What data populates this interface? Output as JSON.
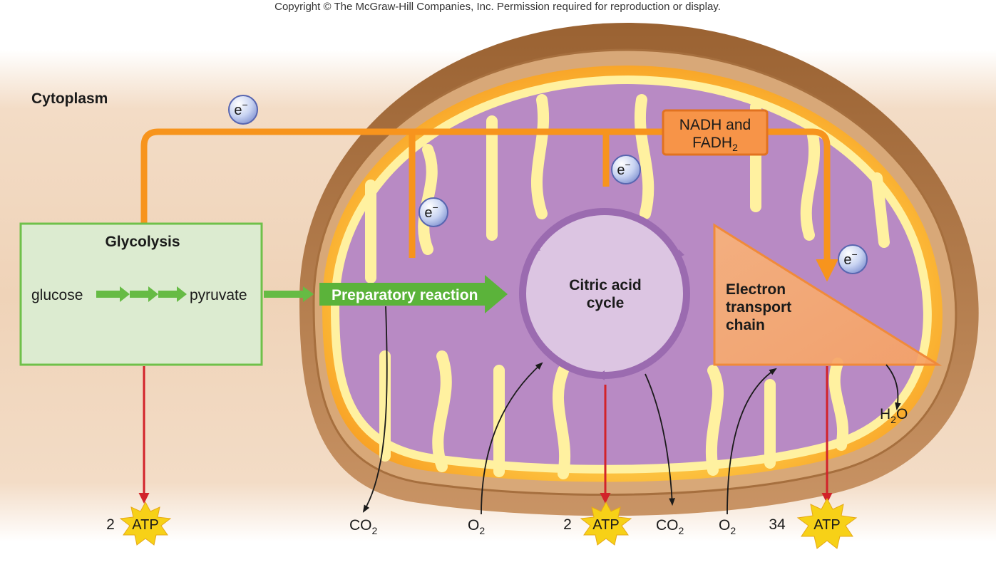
{
  "copyright": "Copyright © The McGraw-Hill Companies, Inc. Permission required for reproduction or display.",
  "regions": {
    "cytoplasm": "Cytoplasm"
  },
  "glycolysis": {
    "title": "Glycolysis",
    "input": "glucose",
    "output": "pyruvate"
  },
  "prep": {
    "label": "Preparatory reaction"
  },
  "citric": {
    "line1": "Citric acid",
    "line2": "cycle"
  },
  "etc": {
    "line1": "Electron",
    "line2": "transport",
    "line3": "chain"
  },
  "carriers": {
    "line1": "NADH and",
    "line2_base": "FADH",
    "line2_sub": "2"
  },
  "electron": {
    "base": "e",
    "sup": "−"
  },
  "products": {
    "glycolysis_atp": {
      "count": "2",
      "label": "ATP"
    },
    "citric_atp": {
      "count": "2",
      "label": "ATP"
    },
    "etc_atp": {
      "count": "34",
      "label": "ATP"
    },
    "co2": {
      "base": "CO",
      "sub": "2"
    },
    "o2": {
      "base": "O",
      "sub": "2"
    },
    "h2o": {
      "h": "H",
      "sub": "2",
      "o": "O"
    }
  },
  "colors": {
    "electron_path": "#f7941d",
    "glycolysis_fill": "#dcebd0",
    "glycolysis_border": "#6fc04a",
    "green_arrow": "#66bb44",
    "matrix": "#b78bc2",
    "cristae": "#fff3a0",
    "atp_arrow": "#d2232a",
    "atp_burst": "#f7d117"
  }
}
